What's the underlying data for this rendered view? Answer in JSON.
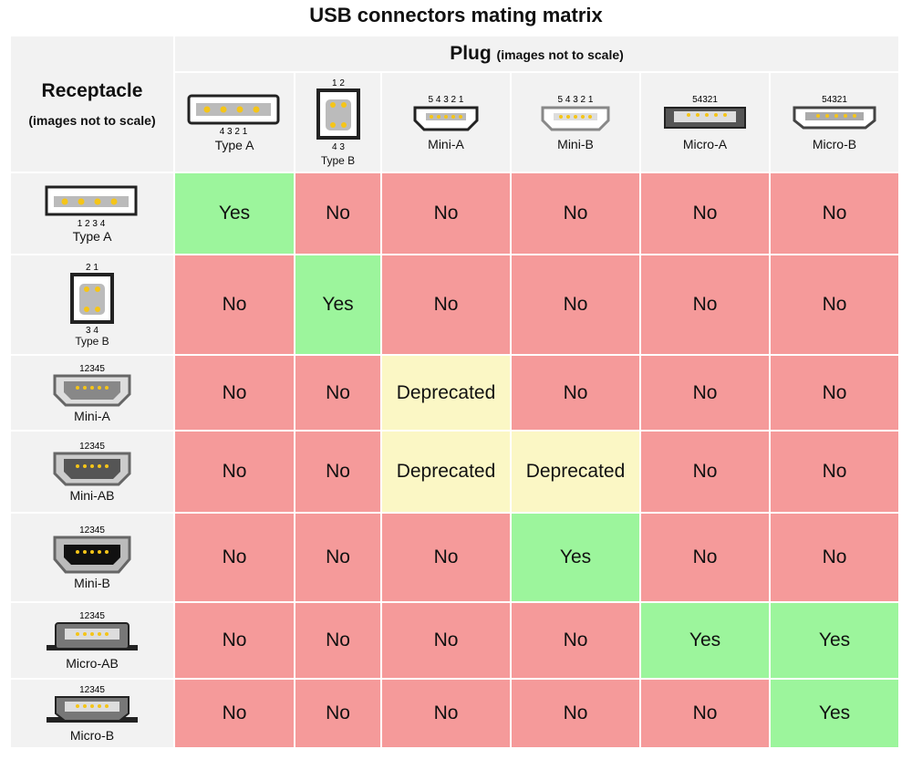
{
  "title": "USB connectors mating matrix",
  "receptacle_header": {
    "label": "Receptacle",
    "note": "(images not to scale)"
  },
  "plug_header": {
    "label": "Plug",
    "note": "(images not to scale)"
  },
  "plugs": [
    {
      "name": "Type A",
      "pins": "4 3 2 1"
    },
    {
      "name": "Type B",
      "pins_top": "1 2",
      "pins_bottom": "4 3"
    },
    {
      "name": "Mini-A",
      "pins": "5 4 3 2 1"
    },
    {
      "name": "Mini-B",
      "pins": "5 4 3 2 1"
    },
    {
      "name": "Micro-A",
      "pins": "54321"
    },
    {
      "name": "Micro-B",
      "pins": "54321"
    }
  ],
  "receptacles": [
    {
      "name": "Type A",
      "pins": "1 2 3 4",
      "cells": [
        "Yes",
        "No",
        "No",
        "No",
        "No",
        "No"
      ]
    },
    {
      "name": "Type B",
      "pins_top": "2 1",
      "pins_bottom": "3 4",
      "cells": [
        "No",
        "Yes",
        "No",
        "No",
        "No",
        "No"
      ]
    },
    {
      "name": "Mini-A",
      "pins": "12345",
      "cells": [
        "No",
        "No",
        "Deprecated",
        "No",
        "No",
        "No"
      ]
    },
    {
      "name": "Mini-AB",
      "pins": "12345",
      "cells": [
        "No",
        "No",
        "Deprecated",
        "Deprecated",
        "No",
        "No"
      ]
    },
    {
      "name": "Mini-B",
      "pins": "12345",
      "cells": [
        "No",
        "No",
        "No",
        "Yes",
        "No",
        "No"
      ]
    },
    {
      "name": "Micro-AB",
      "pins": "12345",
      "cells": [
        "No",
        "No",
        "No",
        "No",
        "Yes",
        "Yes"
      ]
    },
    {
      "name": "Micro-B",
      "pins": "12345",
      "cells": [
        "No",
        "No",
        "No",
        "No",
        "No",
        "Yes"
      ]
    }
  ],
  "colors": {
    "yes": "#9cf59c",
    "no": "#f59a9a",
    "deprecated": "#fbf7c5",
    "header": "#f2f2f2"
  }
}
